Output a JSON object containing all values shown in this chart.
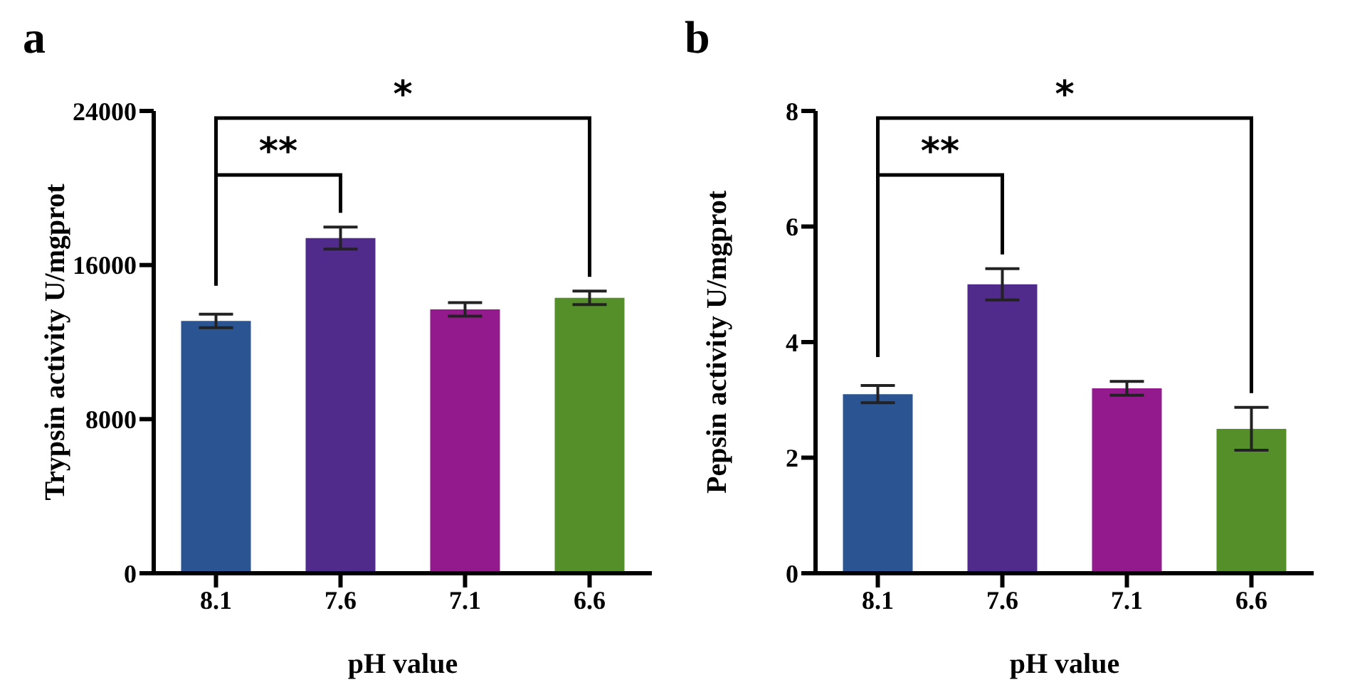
{
  "chart_data": [
    {
      "type": "bar",
      "title": "a",
      "xlabel": "pH value",
      "ylabel": "Trypsin activity U/mgprot",
      "categories": [
        "8.1",
        "7.6",
        "7.1",
        "6.6"
      ],
      "values": [
        13100,
        17400,
        13700,
        14300
      ],
      "errors": [
        350,
        570,
        350,
        350
      ],
      "colors": [
        "#2a5592",
        "#512b8c",
        "#921a8c",
        "#548f29"
      ],
      "ylim": [
        0,
        24000
      ],
      "yticks": [
        0,
        8000,
        16000,
        24000
      ],
      "grid": false,
      "legend": false,
      "annotations": [
        "**",
        "*"
      ]
    },
    {
      "type": "bar",
      "title": "b",
      "xlabel": "pH value",
      "ylabel": "Pepsin activity U/mgprot",
      "categories": [
        "8.1",
        "7.6",
        "7.1",
        "6.6"
      ],
      "values": [
        3.1,
        5.0,
        3.2,
        2.5
      ],
      "errors": [
        0.15,
        0.27,
        0.12,
        0.37
      ],
      "colors": [
        "#2a5592",
        "#512b8c",
        "#921a8c",
        "#548f29"
      ],
      "ylim": [
        0,
        8
      ],
      "yticks": [
        0,
        2,
        4,
        6,
        8
      ],
      "grid": false,
      "legend": false,
      "annotations": [
        "**",
        "*"
      ]
    }
  ]
}
